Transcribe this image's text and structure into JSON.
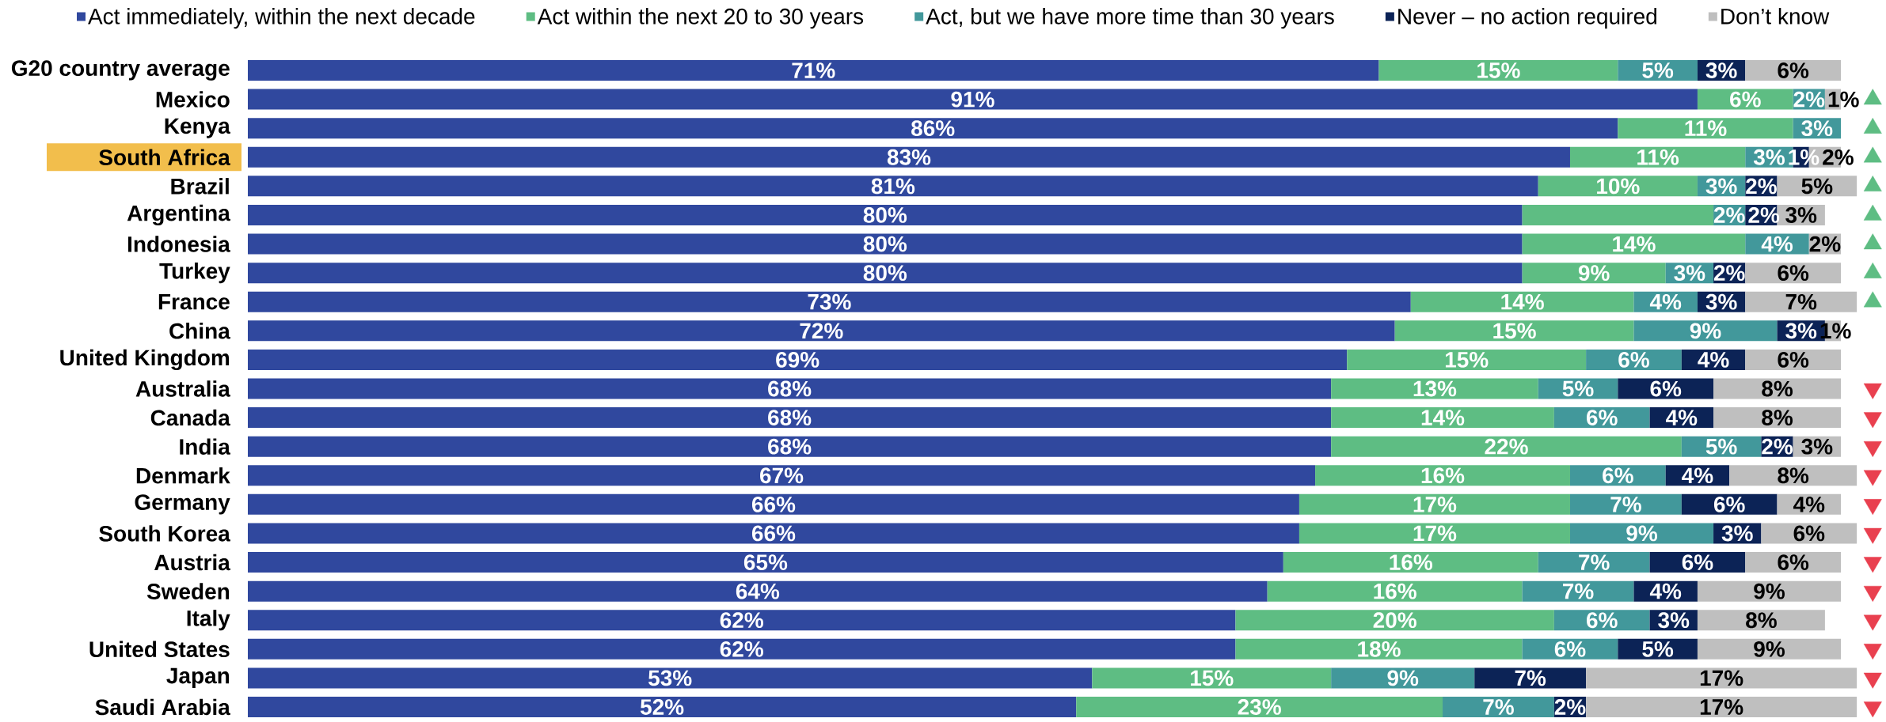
{
  "chart_data": {
    "type": "bar",
    "orientation": "horizontal",
    "stacked": true,
    "legend": "top",
    "tick_labels": "y",
    "categories": [
      "G20 country average",
      "Mexico",
      "Kenya",
      "South Africa",
      "Brazil",
      "Argentina",
      "Indonesia",
      "Turkey",
      "France",
      "China",
      "United Kingdom",
      "Australia",
      "Canada",
      "India",
      "Denmark",
      "Germany",
      "South Korea",
      "Austria",
      "Sweden",
      "Italy",
      "United States",
      "Japan",
      "Saudi Arabia"
    ],
    "series": [
      {
        "name": "Act immediately, within the next decade",
        "color": "#30489e",
        "values": [
          71,
          91,
          86,
          83,
          81,
          80,
          80,
          80,
          73,
          72,
          69,
          68,
          68,
          68,
          67,
          66,
          66,
          65,
          64,
          62,
          62,
          53,
          52
        ],
        "value_labels": [
          "71%",
          "91%",
          "86%",
          "83%",
          "81%",
          "80%",
          "80%",
          "80%",
          "73%",
          "72%",
          "69%",
          "68%",
          "68%",
          "68%",
          "67%",
          "66%",
          "66%",
          "65%",
          "64%",
          "62%",
          "62%",
          "53%",
          "52%"
        ]
      },
      {
        "name": "Act within the next 20 to 30 years",
        "color": "#5ebd83",
        "values": [
          15,
          6,
          11,
          11,
          10,
          12,
          14,
          9,
          14,
          15,
          15,
          13,
          14,
          22,
          16,
          17,
          17,
          16,
          16,
          20,
          18,
          15,
          23
        ],
        "value_labels": [
          "15%",
          "6%",
          "11%",
          "11%",
          "10%",
          null,
          "14%",
          "9%",
          "14%",
          "15%",
          "15%",
          "13%",
          "14%",
          "22%",
          "16%",
          "17%",
          "17%",
          "16%",
          "16%",
          "20%",
          "18%",
          "15%",
          "23%"
        ]
      },
      {
        "name": "Act, but we have more time than 30 years",
        "color": "#42989b",
        "values": [
          5,
          2,
          3,
          3,
          3,
          2,
          4,
          3,
          4,
          9,
          6,
          5,
          6,
          5,
          6,
          7,
          9,
          7,
          7,
          6,
          6,
          9,
          7
        ],
        "value_labels": [
          "5%",
          "2%",
          "3%",
          "3%",
          "3%",
          "2%",
          "4%",
          "3%",
          "4%",
          "9%",
          "6%",
          "5%",
          "6%",
          "5%",
          "6%",
          "7%",
          "9%",
          "7%",
          "7%",
          "6%",
          "6%",
          "9%",
          "7%"
        ]
      },
      {
        "name": "Never – no action required",
        "color": "#0c2356",
        "values": [
          3,
          null,
          null,
          1,
          2,
          2,
          null,
          2,
          3,
          3,
          4,
          6,
          4,
          2,
          4,
          6,
          3,
          6,
          4,
          3,
          5,
          7,
          2
        ],
        "value_labels": [
          "3%",
          null,
          null,
          "1%",
          "2%",
          "2%",
          null,
          "2%",
          "3%",
          "3%",
          "4%",
          "6%",
          "4%",
          "2%",
          "4%",
          "6%",
          "3%",
          "6%",
          "4%",
          "3%",
          "5%",
          "7%",
          "2%"
        ]
      },
      {
        "name": "Don’t know",
        "color": "#bfbfbf",
        "values": [
          6,
          1,
          null,
          2,
          5,
          3,
          2,
          6,
          7,
          1,
          6,
          8,
          8,
          3,
          8,
          4,
          6,
          6,
          9,
          8,
          9,
          17,
          17
        ],
        "value_labels": [
          "6%",
          "1%",
          null,
          "2%",
          "5%",
          "3%",
          "2%",
          "6%",
          "7%",
          "1%",
          "6%",
          "8%",
          "8%",
          "3%",
          "8%",
          "4%",
          "6%",
          "6%",
          "9%",
          "8%",
          "9%",
          "17%",
          "17%"
        ]
      },
      {
        "type": "scatter",
        "marker": "triangle",
        "color": "#5ebd83",
        "values": [
          null,
          102,
          102,
          102,
          102,
          102,
          102,
          102,
          102,
          null,
          null,
          null,
          null,
          null,
          null,
          null,
          null,
          null,
          null,
          null,
          null,
          null,
          null
        ]
      },
      {
        "type": "scatter",
        "marker": "triangle-down",
        "color": "#e9404f",
        "values": [
          null,
          null,
          null,
          null,
          null,
          null,
          null,
          null,
          null,
          null,
          null,
          102,
          102,
          102,
          102,
          102,
          102,
          102,
          102,
          102,
          102,
          102,
          102
        ]
      }
    ]
  }
}
